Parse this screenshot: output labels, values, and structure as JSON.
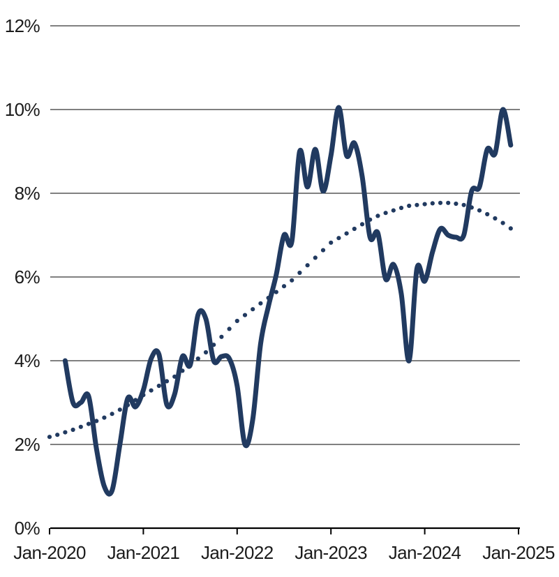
{
  "chart_data": {
    "type": "line",
    "title": "",
    "legend": "none",
    "grid": "horizontal-only",
    "x_axis": {
      "tick_labels": [
        "Jan-2020",
        "Jan-2021",
        "Jan-2022",
        "Jan-2023",
        "Jan-2024",
        "Jan-2025"
      ],
      "tick_month_indices": [
        0,
        12,
        24,
        36,
        48,
        60
      ],
      "unit": "month",
      "range_months": [
        0,
        60
      ]
    },
    "y_axis": {
      "tick_labels": [
        "0%",
        "2%",
        "4%",
        "6%",
        "8%",
        "10%",
        "12%"
      ],
      "tick_values": [
        0,
        2,
        4,
        6,
        8,
        10,
        12
      ],
      "ylim": [
        0,
        12
      ],
      "unit": "percent"
    },
    "series": [
      {
        "name": "headline-series",
        "style": "solid",
        "stroke_width": 7,
        "start_month_index": 2,
        "monthly_values_pct": [
          4.0,
          3.0,
          3.0,
          3.15,
          1.9,
          1.0,
          0.9,
          2.0,
          3.1,
          2.9,
          3.3,
          4.05,
          4.15,
          2.95,
          3.2,
          4.1,
          3.9,
          5.1,
          5.0,
          4.0,
          4.1,
          4.05,
          3.4,
          2.0,
          2.6,
          4.4,
          5.3,
          6.05,
          7.0,
          6.85,
          9.0,
          8.15,
          9.05,
          8.05,
          8.9,
          10.05,
          8.9,
          9.2,
          8.4,
          6.95,
          7.05,
          5.95,
          6.3,
          5.6,
          4.0,
          6.2,
          5.9,
          6.6,
          7.15,
          7.0,
          6.95,
          7.0,
          8.05,
          8.15,
          9.05,
          8.95,
          10.0,
          9.15
        ]
      },
      {
        "name": "trend-series",
        "style": "dotted",
        "dot_radius": 3.1,
        "start_month_index": 0,
        "monthly_values_pct": [
          2.18,
          2.23,
          2.29,
          2.35,
          2.42,
          2.49,
          2.56,
          2.64,
          2.73,
          2.83,
          2.94,
          3.06,
          3.18,
          3.29,
          3.4,
          3.51,
          3.62,
          3.76,
          3.9,
          4.05,
          4.2,
          4.38,
          4.57,
          4.76,
          4.95,
          5.09,
          5.23,
          5.37,
          5.5,
          5.64,
          5.78,
          5.92,
          6.1,
          6.28,
          6.46,
          6.64,
          6.82,
          6.93,
          7.04,
          7.15,
          7.26,
          7.37,
          7.46,
          7.53,
          7.59,
          7.65,
          7.7,
          7.72,
          7.74,
          7.76,
          7.77,
          7.77,
          7.75,
          7.72,
          7.66,
          7.59,
          7.5,
          7.4,
          7.29,
          7.16
        ]
      }
    ],
    "colors": {
      "line": "#213a60",
      "grid": "#000000",
      "axis": "#000000",
      "text": "#1b1b1b",
      "background": "#ffffff"
    }
  }
}
